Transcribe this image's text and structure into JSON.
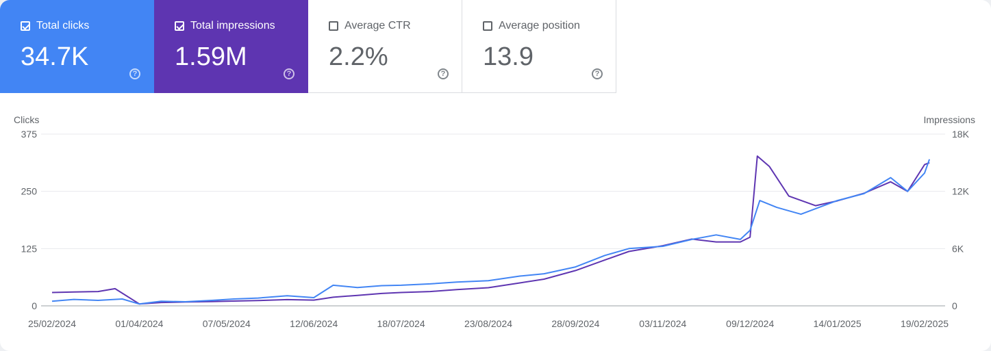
{
  "metrics": [
    {
      "label": "Total clicks",
      "value": "34.7K",
      "checked": true
    },
    {
      "label": "Total impressions",
      "value": "1.59M",
      "checked": true
    },
    {
      "label": "Average CTR",
      "value": "2.2%",
      "checked": false
    },
    {
      "label": "Average position",
      "value": "13.9",
      "checked": false
    }
  ],
  "help_glyph": "?",
  "colors": {
    "clicks": "#4285f4",
    "impressions": "#5e35b1",
    "grid": "#e8eaed",
    "text": "#5f6368"
  },
  "chart_data": {
    "type": "line",
    "xlabel": "",
    "y_left_label": "Clicks",
    "y_right_label": "Impressions",
    "x_tick_labels": [
      "25/02/2024",
      "01/04/2024",
      "07/05/2024",
      "12/06/2024",
      "18/07/2024",
      "23/08/2024",
      "28/09/2024",
      "03/11/2024",
      "09/12/2024",
      "14/01/2025",
      "19/02/2025"
    ],
    "x_range": [
      "25/02/2024",
      "21/02/2025"
    ],
    "y_left_ticks": [
      "0",
      "125",
      "250",
      "375"
    ],
    "y_left_range": [
      0,
      375
    ],
    "y_right_ticks": [
      "0",
      "6K",
      "12K",
      "18K"
    ],
    "y_right_range": [
      0,
      18000
    ],
    "grid": true,
    "series": [
      {
        "name": "Clicks",
        "axis": "left",
        "color": "#4285f4",
        "points": [
          [
            "25/02/2024",
            10
          ],
          [
            "05/03/2024",
            14
          ],
          [
            "15/03/2024",
            12
          ],
          [
            "25/03/2024",
            15
          ],
          [
            "01/04/2024",
            4
          ],
          [
            "10/04/2024",
            10
          ],
          [
            "20/04/2024",
            9
          ],
          [
            "01/05/2024",
            12
          ],
          [
            "10/05/2024",
            15
          ],
          [
            "20/05/2024",
            17
          ],
          [
            "01/06/2024",
            22
          ],
          [
            "12/06/2024",
            18
          ],
          [
            "20/06/2024",
            45
          ],
          [
            "30/06/2024",
            40
          ],
          [
            "10/07/2024",
            44
          ],
          [
            "18/07/2024",
            45
          ],
          [
            "30/07/2024",
            48
          ],
          [
            "10/08/2024",
            52
          ],
          [
            "23/08/2024",
            55
          ],
          [
            "05/09/2024",
            65
          ],
          [
            "15/09/2024",
            70
          ],
          [
            "28/09/2024",
            85
          ],
          [
            "10/10/2024",
            110
          ],
          [
            "20/10/2024",
            125
          ],
          [
            "03/11/2024",
            130
          ],
          [
            "15/11/2024",
            145
          ],
          [
            "25/11/2024",
            155
          ],
          [
            "05/12/2024",
            145
          ],
          [
            "09/12/2024",
            165
          ],
          [
            "13/12/2024",
            230
          ],
          [
            "20/12/2024",
            215
          ],
          [
            "30/12/2024",
            200
          ],
          [
            "14/01/2025",
            230
          ],
          [
            "25/01/2025",
            245
          ],
          [
            "05/02/2025",
            280
          ],
          [
            "12/02/2025",
            250
          ],
          [
            "19/02/2025",
            290
          ],
          [
            "21/02/2025",
            320
          ]
        ]
      },
      {
        "name": "Impressions",
        "axis": "right",
        "color": "#5e35b1",
        "points": [
          [
            "25/02/2024",
            1400
          ],
          [
            "05/03/2024",
            1450
          ],
          [
            "15/03/2024",
            1500
          ],
          [
            "22/03/2024",
            1800
          ],
          [
            "01/04/2024",
            200
          ],
          [
            "10/04/2024",
            350
          ],
          [
            "20/04/2024",
            400
          ],
          [
            "01/05/2024",
            450
          ],
          [
            "10/05/2024",
            500
          ],
          [
            "20/05/2024",
            550
          ],
          [
            "01/06/2024",
            650
          ],
          [
            "12/06/2024",
            600
          ],
          [
            "20/06/2024",
            900
          ],
          [
            "30/06/2024",
            1100
          ],
          [
            "10/07/2024",
            1300
          ],
          [
            "18/07/2024",
            1400
          ],
          [
            "30/07/2024",
            1500
          ],
          [
            "10/08/2024",
            1700
          ],
          [
            "23/08/2024",
            1900
          ],
          [
            "05/09/2024",
            2400
          ],
          [
            "15/09/2024",
            2800
          ],
          [
            "28/09/2024",
            3700
          ],
          [
            "10/10/2024",
            4800
          ],
          [
            "20/10/2024",
            5700
          ],
          [
            "03/11/2024",
            6300
          ],
          [
            "15/11/2024",
            7000
          ],
          [
            "25/11/2024",
            6700
          ],
          [
            "05/12/2024",
            6700
          ],
          [
            "09/12/2024",
            7200
          ],
          [
            "12/12/2024",
            15700
          ],
          [
            "17/12/2024",
            14600
          ],
          [
            "25/12/2024",
            11500
          ],
          [
            "05/01/2025",
            10500
          ],
          [
            "14/01/2025",
            11000
          ],
          [
            "25/01/2025",
            11800
          ],
          [
            "05/02/2025",
            13000
          ],
          [
            "12/02/2025",
            12000
          ],
          [
            "19/02/2025",
            14800
          ],
          [
            "21/02/2025",
            15000
          ]
        ]
      }
    ]
  }
}
